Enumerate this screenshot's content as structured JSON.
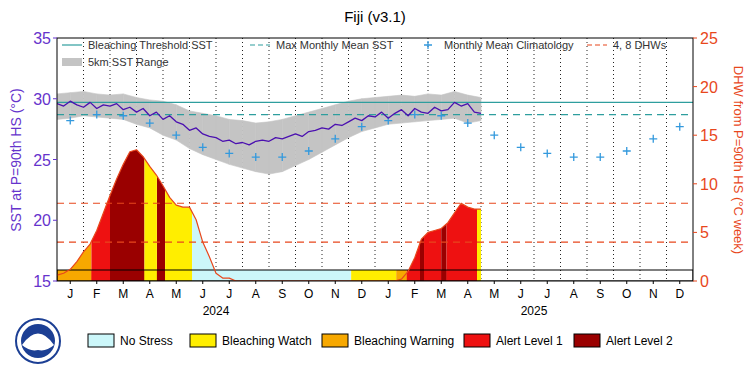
{
  "chart_data": {
    "type": "line",
    "title": "Fiji (v3.1)",
    "y_label": "SST at P=90th HS (°C)",
    "y2_label": "DHW from P=90th HS (°C week)",
    "xlim": [
      0,
      24
    ],
    "xticks": [
      {
        "value": 0.5,
        "label": "J"
      },
      {
        "value": 1.5,
        "label": "F"
      },
      {
        "value": 2.5,
        "label": "M"
      },
      {
        "value": 3.5,
        "label": "A"
      },
      {
        "value": 4.5,
        "label": "M"
      },
      {
        "value": 5.5,
        "label": "J"
      },
      {
        "value": 6.5,
        "label": "J"
      },
      {
        "value": 7.5,
        "label": "A"
      },
      {
        "value": 8.5,
        "label": "S"
      },
      {
        "value": 9.5,
        "label": "O"
      },
      {
        "value": 10.5,
        "label": "N"
      },
      {
        "value": 11.5,
        "label": "D"
      },
      {
        "value": 12.5,
        "label": "J"
      },
      {
        "value": 13.5,
        "label": "F"
      },
      {
        "value": 14.5,
        "label": "M"
      },
      {
        "value": 15.5,
        "label": "A"
      },
      {
        "value": 16.5,
        "label": "M"
      },
      {
        "value": 17.5,
        "label": "J"
      },
      {
        "value": 18.5,
        "label": "J"
      },
      {
        "value": 19.5,
        "label": "A"
      },
      {
        "value": 20.5,
        "label": "S"
      },
      {
        "value": 21.5,
        "label": "O"
      },
      {
        "value": 22.5,
        "label": "N"
      },
      {
        "value": 23.5,
        "label": "D"
      }
    ],
    "x_group_labels": [
      {
        "value": 6,
        "label": "2024"
      },
      {
        "value": 18,
        "label": "2025"
      }
    ],
    "ylim": [
      15,
      35
    ],
    "yticks": [
      15,
      20,
      25,
      30,
      35
    ],
    "y2lim": [
      0,
      25
    ],
    "y2ticks": [
      0,
      5,
      10,
      15,
      20,
      25
    ],
    "grid": true,
    "series": [
      {
        "name": "Bleaching Threshold SST",
        "type": "hline",
        "color": "#2e9e9e",
        "line_style": "solid",
        "values": [
          29.7
        ]
      },
      {
        "name": "Max Monthly Mean SST",
        "type": "hline",
        "color": "#2e9e9e",
        "line_style": "dashed",
        "values": [
          28.7
        ]
      },
      {
        "name": "Monthly Mean Climatology",
        "type": "scatter",
        "marker": "plus",
        "color": "#3399dd",
        "x": [
          0.5,
          1.5,
          2.5,
          3.5,
          4.5,
          5.5,
          6.5,
          7.5,
          8.5,
          9.5,
          10.5,
          11.5,
          12.5,
          13.5,
          14.5,
          15.5,
          16.5,
          17.5,
          18.5,
          19.5,
          20.5,
          21.5,
          22.5,
          23.5
        ],
        "values": [
          28.2,
          28.7,
          28.6,
          28.0,
          27.0,
          26.0,
          25.5,
          25.2,
          25.2,
          25.7,
          26.7,
          27.7,
          28.2,
          28.7,
          28.6,
          28.0,
          27.0,
          26.0,
          25.5,
          25.2,
          25.2,
          25.7,
          26.7,
          27.7
        ]
      },
      {
        "name": "5km SST Range",
        "type": "band",
        "color": "#c4c4c4",
        "x": [
          0,
          0.5,
          1,
          1.5,
          2,
          2.5,
          3,
          3.5,
          4,
          4.5,
          5,
          5.5,
          6,
          6.5,
          7,
          7.5,
          8,
          8.5,
          9,
          9.5,
          10,
          10.5,
          11,
          11.5,
          12,
          12.5,
          13,
          13.5,
          14,
          14.5,
          15,
          15.5,
          16
        ],
        "low": [
          28.3,
          28.4,
          28.6,
          28.5,
          28.4,
          28.3,
          27.9,
          27.6,
          27.0,
          26.6,
          25.9,
          25.4,
          25.0,
          24.6,
          24.3,
          24.0,
          23.8,
          24.0,
          24.5,
          25.0,
          25.6,
          26.2,
          26.8,
          27.3,
          27.6,
          27.9,
          28.0,
          28.1,
          28.2,
          28.3,
          28.4,
          28.0,
          28.2
        ],
        "high": [
          30.4,
          30.5,
          30.6,
          30.4,
          30.3,
          30.4,
          30.1,
          29.9,
          29.8,
          29.5,
          29.0,
          28.8,
          28.6,
          28.3,
          28.2,
          28.0,
          28.1,
          28.3,
          28.6,
          28.9,
          29.2,
          29.5,
          29.8,
          30.0,
          30.1,
          30.2,
          30.3,
          30.2,
          30.4,
          30.3,
          30.6,
          30.3,
          30.1
        ]
      },
      {
        "type": "line",
        "color": "#4b10b0",
        "x": [
          0,
          0.25,
          0.5,
          0.75,
          1,
          1.25,
          1.5,
          1.75,
          2,
          2.25,
          2.5,
          2.75,
          3,
          3.25,
          3.5,
          3.75,
          4,
          4.25,
          4.5,
          4.75,
          5,
          5.25,
          5.5,
          5.75,
          6,
          6.25,
          6.5,
          6.75,
          7,
          7.25,
          7.5,
          7.75,
          8,
          8.25,
          8.5,
          8.75,
          9,
          9.25,
          9.5,
          9.75,
          10,
          10.25,
          10.5,
          10.75,
          11,
          11.25,
          11.5,
          11.75,
          12,
          12.25,
          12.5,
          12.75,
          13,
          13.25,
          13.5,
          13.75,
          14,
          14.25,
          14.5,
          14.75,
          15,
          15.25,
          15.5,
          15.75,
          16
        ],
        "values": [
          29.6,
          29.4,
          29.8,
          29.5,
          29.3,
          29.7,
          29.2,
          29.5,
          29.4,
          29.6,
          29.1,
          29.3,
          28.9,
          29.2,
          28.6,
          28.9,
          28.3,
          28.6,
          28.1,
          27.9,
          27.4,
          27.6,
          27.1,
          26.9,
          26.8,
          26.5,
          26.6,
          26.3,
          26.4,
          26.2,
          26.5,
          26.6,
          26.5,
          26.8,
          26.7,
          26.9,
          27.1,
          26.9,
          27.3,
          27.4,
          27.6,
          27.5,
          27.9,
          27.8,
          28.1,
          28.4,
          28.2,
          28.6,
          28.5,
          28.9,
          28.4,
          28.8,
          29.1,
          28.6,
          29.2,
          28.9,
          28.8,
          29.3,
          29.0,
          29.1,
          29.7,
          29.4,
          29.6,
          28.9,
          28.8
        ]
      },
      {
        "name": "4, 8 DHWs",
        "type": "hline",
        "axis": "y2",
        "color": "#e8471c",
        "line_style": "dashed",
        "values": [
          4,
          8
        ]
      },
      {
        "type": "area",
        "axis": "y2",
        "color": "#e8471c",
        "x": [
          0,
          0.25,
          0.5,
          0.75,
          1,
          1.25,
          1.5,
          1.75,
          2,
          2.25,
          2.5,
          2.75,
          3,
          3.25,
          3.5,
          3.75,
          4,
          4.25,
          4.5,
          4.75,
          5,
          5.25,
          5.5,
          5.75,
          6,
          6.25,
          6.5,
          6.75,
          7,
          7.25,
          7.5,
          7.75,
          8,
          8.25,
          8.5,
          8.75,
          9,
          9.25,
          9.5,
          9.75,
          10,
          10.25,
          10.5,
          10.75,
          11,
          11.25,
          11.5,
          11.75,
          12,
          12.25,
          12.5,
          12.75,
          13,
          13.25,
          13.5,
          13.75,
          14,
          14.25,
          14.5,
          14.75,
          15,
          15.25,
          15.5,
          15.75,
          16
        ],
        "values": [
          0.6,
          0.8,
          1.2,
          2.0,
          3.0,
          3.8,
          5.2,
          7.0,
          8.8,
          10.5,
          12.0,
          13.3,
          13.5,
          12.8,
          11.8,
          10.9,
          9.8,
          8.6,
          7.8,
          7.6,
          7.6,
          6.3,
          4.0,
          2.5,
          0.8,
          0.3,
          0.3,
          0,
          0,
          0,
          0,
          0,
          0,
          0,
          0,
          0,
          0,
          0,
          0,
          0,
          0,
          0,
          0,
          0,
          0,
          0,
          0,
          0,
          0,
          0,
          0,
          0,
          0.2,
          1.0,
          2.4,
          4.3,
          5.0,
          5.2,
          5.4,
          6.0,
          7.0,
          8.0,
          7.6,
          7.4,
          7.4
        ]
      }
    ],
    "stress_levels": [
      {
        "name": "No Stress",
        "color": "#ccf7fa"
      },
      {
        "name": "Bleaching Watch",
        "color": "#ffee00"
      },
      {
        "name": "Bleaching Warning",
        "color": "#f7a800"
      },
      {
        "name": "Alert Level 1",
        "color": "#ee1111"
      },
      {
        "name": "Alert Level 2",
        "color": "#9a0000"
      }
    ],
    "stress": {
      "x": [
        0,
        1.3,
        2.0,
        3.3,
        3.77,
        4.08,
        5.1,
        11.1,
        12.8,
        13.2,
        13.7,
        13.85,
        14.5,
        14.7,
        15.85,
        16.0
      ],
      "levels": [
        "Bleaching Warning",
        "Alert Level 1",
        "Alert Level 2",
        "Bleaching Watch",
        "Alert Level 2",
        "Bleaching Watch",
        "No Stress",
        "Bleaching Watch",
        "Bleaching Warning",
        "Alert Level 1",
        "Alert Level 2",
        "Alert Level 1",
        "Alert Level 2",
        "Alert Level 1",
        "Bleaching Watch"
      ]
    }
  }
}
